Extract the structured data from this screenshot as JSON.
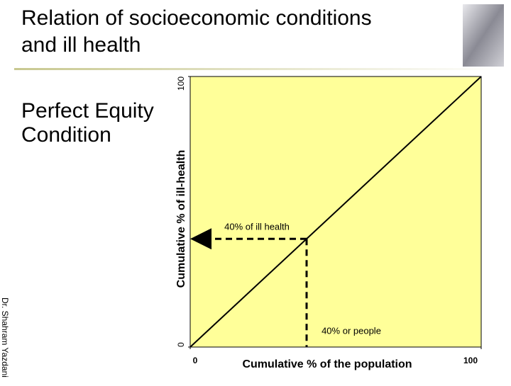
{
  "chart_data": {
    "type": "line",
    "title": "Relation of socioeconomic conditions and ill health",
    "subtitle": "Perfect Equity Condition",
    "x_label": "Cumulative % of  the population",
    "y_label": "Cumulative % of  ill-health",
    "credit": "Dr. Shahram Yazdani",
    "x": [
      0,
      100
    ],
    "series": [
      {
        "color": "#000000",
        "values": [
          0,
          100
        ]
      }
    ],
    "xlim": [
      0,
      100
    ],
    "ylim": [
      0,
      100
    ],
    "xticks": [
      0,
      100
    ],
    "yticks": [
      0,
      100
    ],
    "plot_background": "#ffff99",
    "marker": {
      "x": 40,
      "y": 40,
      "y_label": "40% of ill health",
      "x_label": "40% or people"
    }
  }
}
